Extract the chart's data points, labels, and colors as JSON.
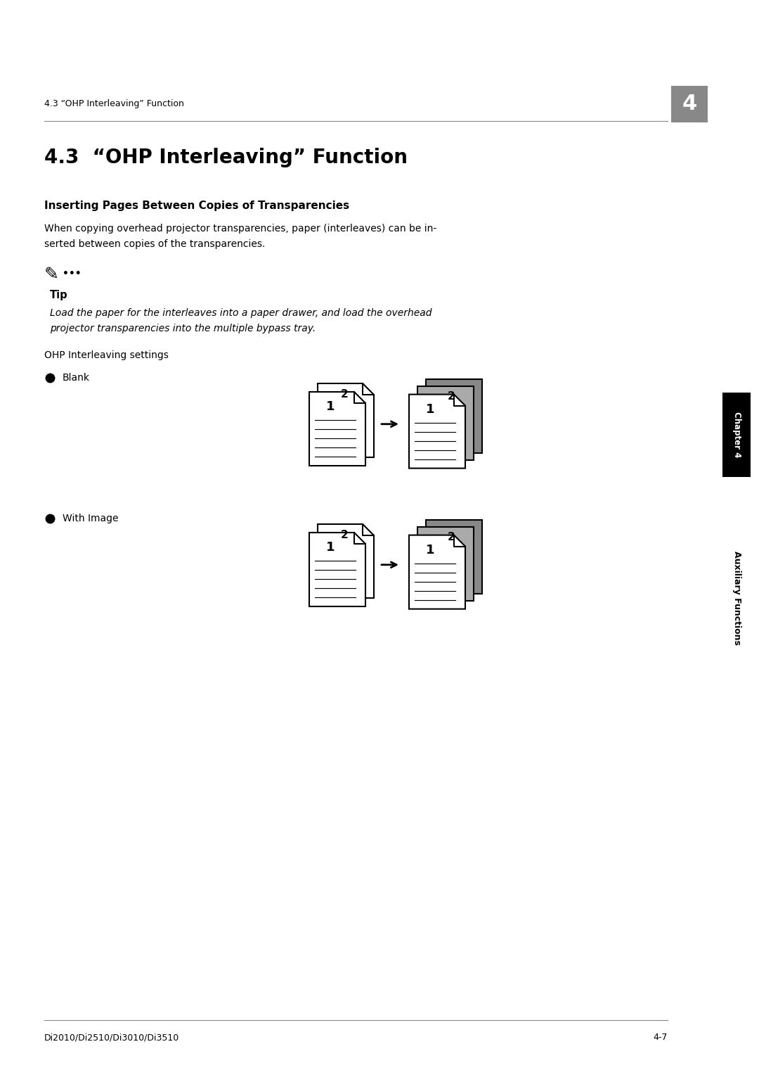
{
  "page_title": "4.3  “OHP Interleaving” Function",
  "header_text": "4.3 “OHP Interleaving” Function",
  "chapter_number": "4",
  "section_subtitle": "Inserting Pages Between Copies of Transparencies",
  "body_text1": "When copying overhead projector transparencies, paper (interleaves) can be in-\nserted between copies of the transparencies.",
  "tip_label": "Tip",
  "tip_text": "Load the paper for the interleaves into a paper drawer, and load the overhead\nprojector transparencies into the multiple bypass tray.",
  "settings_label": "OHP Interleaving settings",
  "bullet1": "Blank",
  "bullet2": "With Image",
  "footer_left": "Di2010/Di2510/Di3010/Di3510",
  "footer_right": "4-7",
  "sidebar_top": "Chapter 4",
  "sidebar_bottom": "Auxiliary Functions",
  "bg_color": "#ffffff",
  "text_color": "#000000",
  "gray_dark": "#888888",
  "gray_mid": "#aaaaaa",
  "gray_light": "#cccccc",
  "header_line_color": "#888888",
  "chapter_box_color": "#888888"
}
